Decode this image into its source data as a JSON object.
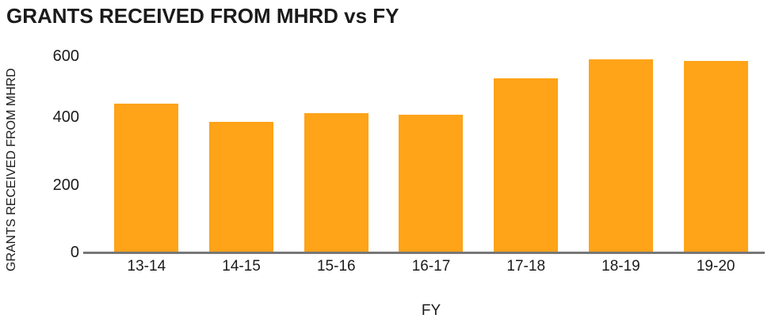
{
  "chart_data": {
    "type": "bar",
    "title": "GRANTS RECEIVED FROM MHRD vs FY",
    "xlabel": "FY",
    "ylabel": "GRANTS RECEIVED FROM MHRD",
    "categories": [
      "13-14",
      "14-15",
      "15-16",
      "16-17",
      "17-18",
      "18-19",
      "19-20"
    ],
    "values": [
      440,
      385,
      410,
      405,
      515,
      570,
      565
    ],
    "yticks": [
      0,
      200,
      400,
      600
    ],
    "ylim": [
      0,
      600
    ],
    "grid": false,
    "legend": false,
    "colors": {
      "bar": "#FFA318",
      "axis_line": "#777777",
      "text": "#1b1b1b"
    }
  }
}
